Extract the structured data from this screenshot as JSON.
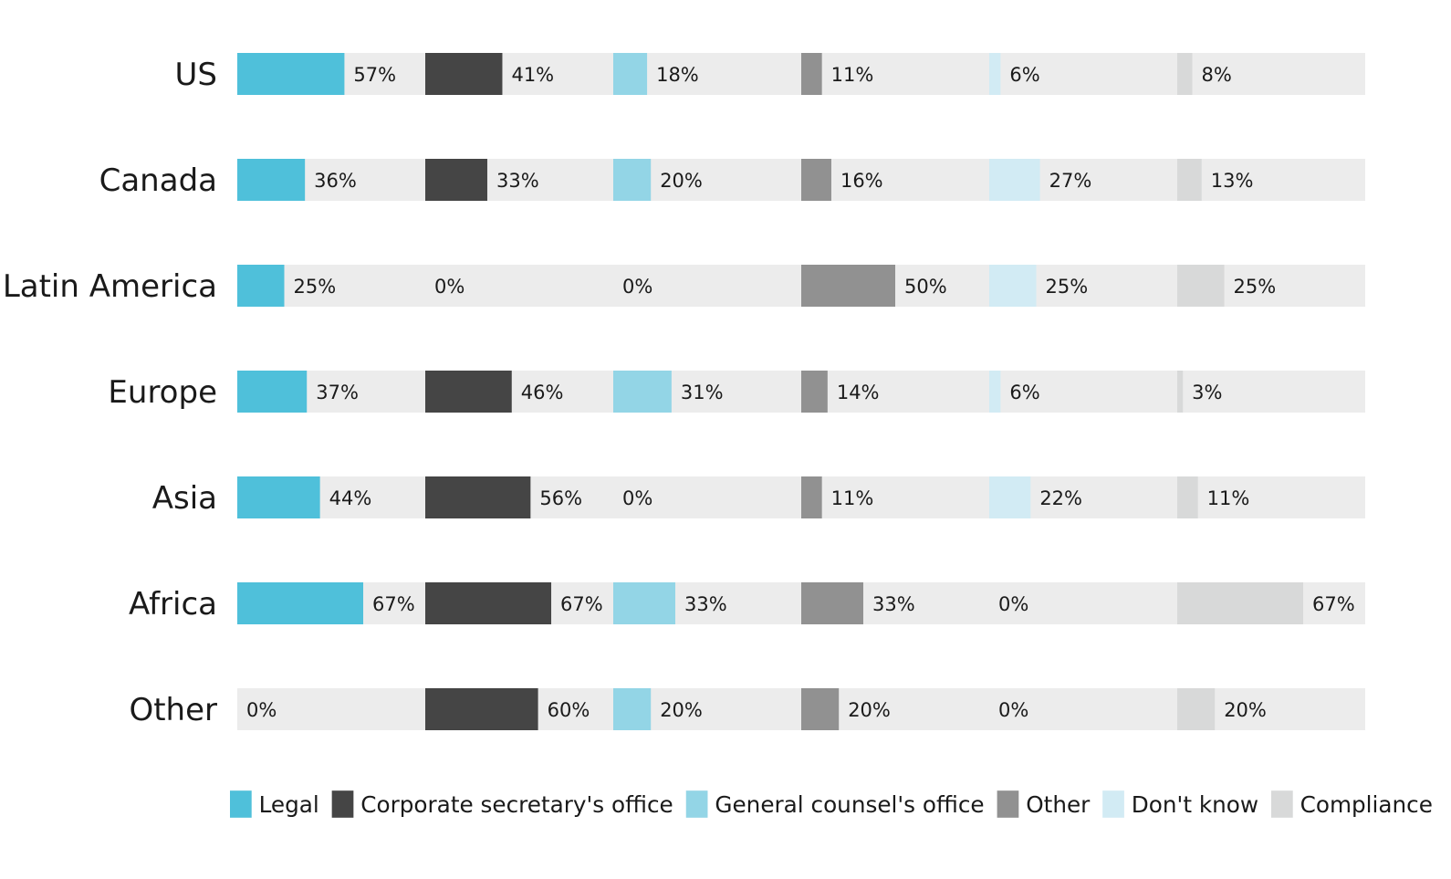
{
  "chart_data": {
    "type": "bar",
    "layout": "small-multiples-horizontal",
    "categories": [
      "US",
      "Canada",
      "Latin America",
      "Europe",
      "Asia",
      "Africa",
      "Other"
    ],
    "xlim": [
      0,
      100
    ],
    "unit": "%",
    "series": [
      {
        "name": "Legal",
        "color": "#4fc0da",
        "values": [
          57,
          36,
          25,
          37,
          44,
          67,
          0
        ],
        "labels": [
          "57%",
          "36%",
          "25%",
          "37%",
          "44%",
          "67%",
          "0%"
        ]
      },
      {
        "name": "Corporate secretary's office",
        "color": "#454545",
        "values": [
          41,
          33,
          0,
          46,
          56,
          67,
          60
        ],
        "labels": [
          "41%",
          "33%",
          "0%",
          "46%",
          "56%",
          "67%",
          "60%"
        ]
      },
      {
        "name": "General counsel's office",
        "color": "#93d5e6",
        "values": [
          18,
          20,
          0,
          31,
          0,
          33,
          20
        ],
        "labels": [
          "18%",
          "20%",
          "0%",
          "31%",
          "0%",
          "33%",
          "20%"
        ]
      },
      {
        "name": "Other",
        "color": "#919191",
        "values": [
          11,
          16,
          50,
          14,
          11,
          33,
          20
        ],
        "labels": [
          "11%",
          "16%",
          "50%",
          "14%",
          "11%",
          "33%",
          "20%"
        ]
      },
      {
        "name": "Don't know",
        "color": "#d2ebf4",
        "values": [
          6,
          27,
          25,
          6,
          22,
          0,
          0
        ],
        "labels": [
          "6%",
          "27%",
          "25%",
          "6%",
          "22%",
          "0%",
          "0%"
        ]
      },
      {
        "name": "Compliance",
        "color": "#d8d9d9",
        "values": [
          8,
          13,
          25,
          3,
          11,
          67,
          20
        ],
        "labels": [
          "8%",
          "13%",
          "25%",
          "3%",
          "11%",
          "67%",
          "20%"
        ]
      }
    ],
    "track_color": "#ececec",
    "legend_position": "bottom",
    "grid": false
  }
}
